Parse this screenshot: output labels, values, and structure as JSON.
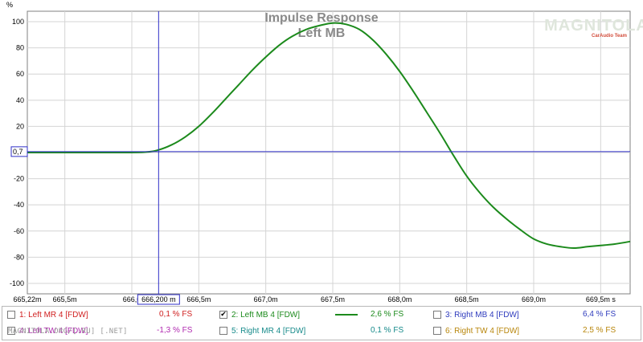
{
  "chart_data": {
    "type": "line",
    "title": "Impulse Response",
    "subtitle": "Left MB",
    "ylabel": "%",
    "xlim": [
      665.22,
      669.72
    ],
    "ylim": [
      -108,
      108
    ],
    "x_unit_suffix": "s",
    "x_ticks": [
      "665,22m",
      "665,5m",
      "666,0",
      "666,5m",
      "667,0m",
      "667,5m",
      "668,0m",
      "668,5m",
      "669,0m",
      "669,5m s"
    ],
    "x_tick_values": [
      665.22,
      665.5,
      666.0,
      666.5,
      667.0,
      667.5,
      668.0,
      668.5,
      669.0,
      669.5
    ],
    "y_ticks": [
      100,
      80,
      60,
      40,
      20,
      0,
      -20,
      -40,
      -60,
      -80,
      -100
    ],
    "grid": true,
    "cursor": {
      "x": 666.2,
      "y": 0.7,
      "x_label": "666,200 m",
      "y_label": "0,7"
    },
    "series": [
      {
        "name": "2: Left MB 4 [FDW]",
        "color": "#1c8a1c",
        "x": [
          665.22,
          665.6,
          665.9,
          666.1,
          666.2,
          666.3,
          666.4,
          666.5,
          666.6,
          666.7,
          666.8,
          666.9,
          667.0,
          667.1,
          667.2,
          667.3,
          667.4,
          667.5,
          667.6,
          667.7,
          667.8,
          667.9,
          668.0,
          668.1,
          668.2,
          668.3,
          668.4,
          668.5,
          668.6,
          668.7,
          668.8,
          668.9,
          669.0,
          669.1,
          669.2,
          669.3,
          669.4,
          669.5,
          669.6,
          669.72
        ],
        "values": [
          0,
          0,
          0,
          0.3,
          2,
          6,
          12,
          20,
          30,
          41,
          52,
          63,
          73,
          82,
          89,
          94,
          97,
          99,
          98,
          94,
          86,
          75,
          62,
          47,
          31,
          15,
          -2,
          -18,
          -31,
          -42,
          -51,
          -59,
          -66,
          -70,
          -72,
          -73,
          -72,
          -71,
          -70,
          -68
        ]
      }
    ]
  },
  "plot": {
    "title": "Impulse Response",
    "subtitle": "Left MB",
    "y_unit": "%",
    "cursor_x_label": "666,200 m",
    "cursor_y_label": "0,7",
    "logo_text": "MAGNITOLA",
    "logo_subtext": "CarAudio Team",
    "colors": {
      "trace": "#1c8a1c",
      "cursor": "#2f2fc8",
      "grid": "#d4d4d4",
      "frame": "#808080"
    }
  },
  "legend": {
    "items": [
      {
        "label": "1: Left MR 4 [FDW]",
        "value": "0,1 % FS",
        "color": "#d02020",
        "checked": false
      },
      {
        "label": "2: Left MB 4 [FDW]",
        "value": "2,6 % FS",
        "color": "#1c8a1c",
        "checked": true
      },
      {
        "label": "3: Right MB 4 [FDW]",
        "value": "6,4 % FS",
        "color": "#2e3bbd",
        "checked": false
      },
      {
        "label": "4: Left TW 4 [FDW]",
        "value": "-1,3 % FS",
        "color": "#b02ab0",
        "checked": false
      },
      {
        "label": "5: Right MR 4 [FDW]",
        "value": "0,1 % FS",
        "color": "#168a8a",
        "checked": false
      },
      {
        "label": "6: Right TW 4 [FDW]",
        "value": "2,5 % FS",
        "color": "#b8860b",
        "checked": false
      }
    ],
    "checked_glyph": "✔"
  },
  "watermark": "MAGNITOLA.ORG/[.RU] [.NET]"
}
